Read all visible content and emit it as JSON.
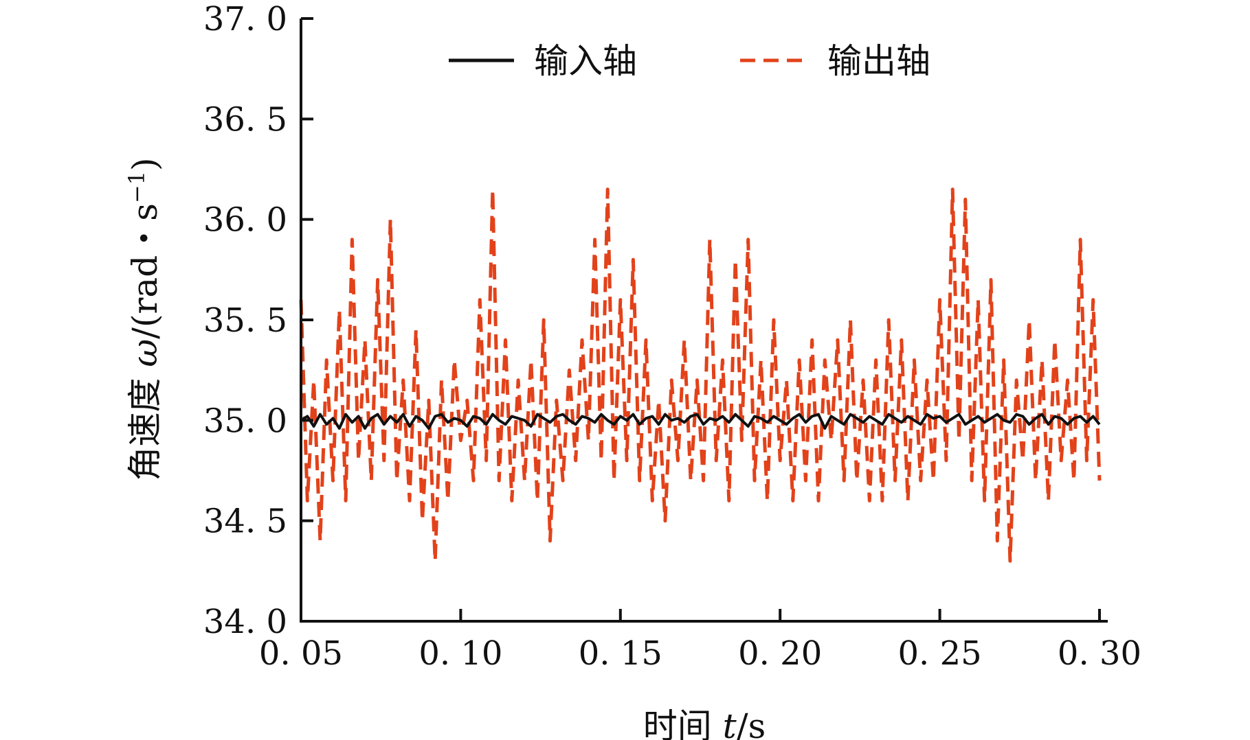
{
  "chart_data": {
    "type": "line",
    "xlabel_text": "时间 ",
    "xlabel_var": "t",
    "xlabel_unit": "/s",
    "ylabel_text": "角速度 ",
    "ylabel_var": "ω",
    "ylabel_unit": "/(rad・s",
    "ylabel_sup": "−1",
    "ylabel_close": ")",
    "xlim": [
      0.05,
      0.3
    ],
    "ylim": [
      34.0,
      37.0
    ],
    "xticks": [
      0.05,
      0.1,
      0.15,
      0.2,
      0.25,
      0.3
    ],
    "xtick_labels": [
      "0. 05",
      "0. 10",
      "0. 15",
      "0. 20",
      "0. 25",
      "0. 30"
    ],
    "yticks": [
      34.0,
      34.5,
      35.0,
      35.5,
      36.0,
      36.5,
      37.0
    ],
    "ytick_labels": [
      "34. 0",
      "34. 5",
      "35. 0",
      "35. 5",
      "36. 0",
      "36. 5",
      "37. 0"
    ],
    "legend_position": "top",
    "grid": false,
    "series": [
      {
        "name": "输入轴",
        "color": "#111111",
        "style": "solid",
        "x": [
          0.05,
          0.052,
          0.054,
          0.056,
          0.058,
          0.06,
          0.062,
          0.064,
          0.066,
          0.068,
          0.07,
          0.072,
          0.074,
          0.076,
          0.078,
          0.08,
          0.082,
          0.084,
          0.086,
          0.088,
          0.09,
          0.092,
          0.094,
          0.096,
          0.098,
          0.1,
          0.102,
          0.104,
          0.106,
          0.108,
          0.11,
          0.112,
          0.114,
          0.116,
          0.118,
          0.12,
          0.122,
          0.124,
          0.126,
          0.128,
          0.13,
          0.132,
          0.134,
          0.136,
          0.138,
          0.14,
          0.142,
          0.144,
          0.146,
          0.148,
          0.15,
          0.152,
          0.154,
          0.156,
          0.158,
          0.16,
          0.162,
          0.164,
          0.166,
          0.168,
          0.17,
          0.172,
          0.174,
          0.176,
          0.178,
          0.18,
          0.182,
          0.184,
          0.186,
          0.188,
          0.19,
          0.192,
          0.194,
          0.196,
          0.198,
          0.2,
          0.202,
          0.204,
          0.206,
          0.208,
          0.21,
          0.212,
          0.214,
          0.216,
          0.218,
          0.22,
          0.222,
          0.224,
          0.226,
          0.228,
          0.23,
          0.232,
          0.234,
          0.236,
          0.238,
          0.24,
          0.242,
          0.244,
          0.246,
          0.248,
          0.25,
          0.252,
          0.254,
          0.256,
          0.258,
          0.26,
          0.262,
          0.264,
          0.266,
          0.268,
          0.27,
          0.272,
          0.274,
          0.276,
          0.278,
          0.28,
          0.282,
          0.284,
          0.286,
          0.288,
          0.29,
          0.292,
          0.294,
          0.296,
          0.298,
          0.3
        ],
        "values": [
          35.0,
          35.02,
          34.97,
          35.03,
          34.98,
          35.01,
          34.96,
          35.03,
          34.99,
          35.02,
          34.96,
          35.01,
          35.03,
          34.98,
          35.02,
          34.99,
          35.03,
          34.97,
          35.02,
          35.0,
          34.96,
          35.02,
          35.03,
          34.99,
          35.01,
          35.0,
          34.97,
          35.02,
          35.01,
          34.98,
          35.03,
          35.0,
          34.98,
          35.02,
          35.01,
          35.0,
          34.97,
          35.03,
          35.01,
          34.99,
          35.02,
          35.03,
          35.0,
          34.98,
          35.02,
          35.01,
          34.99,
          35.03,
          35.0,
          34.98,
          35.02,
          35.0,
          35.03,
          34.98,
          35.01,
          35.02,
          34.98,
          35.03,
          35.0,
          35.01,
          34.99,
          35.02,
          35.03,
          34.98,
          35.01,
          35.0,
          35.02,
          34.99,
          35.03,
          35.0,
          34.97,
          35.02,
          35.01,
          34.99,
          35.02,
          35.0,
          34.98,
          35.01,
          35.03,
          34.99,
          35.02,
          35.03,
          34.96,
          35.02,
          35.0,
          34.98,
          35.03,
          35.01,
          34.99,
          35.02,
          35.0,
          34.98,
          35.03,
          35.01,
          34.99,
          35.02,
          35.0,
          34.98,
          35.03,
          35.01,
          35.02,
          34.99,
          35.01,
          35.03,
          34.98,
          35.0,
          35.02,
          34.99,
          35.01,
          35.03,
          35.0,
          34.99,
          35.03,
          35.02,
          34.98,
          35.01,
          35.03,
          34.98,
          35.02,
          35.01,
          34.98,
          35.01,
          35.02,
          34.99,
          35.02,
          34.98
        ]
      },
      {
        "name": "输出轴",
        "color": "#e2421a",
        "style": "dashed",
        "x": [
          0.05,
          0.052,
          0.054,
          0.056,
          0.058,
          0.06,
          0.062,
          0.064,
          0.066,
          0.068,
          0.07,
          0.072,
          0.074,
          0.076,
          0.078,
          0.08,
          0.082,
          0.084,
          0.086,
          0.088,
          0.09,
          0.092,
          0.094,
          0.096,
          0.098,
          0.1,
          0.102,
          0.104,
          0.106,
          0.108,
          0.11,
          0.112,
          0.114,
          0.116,
          0.118,
          0.12,
          0.122,
          0.124,
          0.126,
          0.128,
          0.13,
          0.132,
          0.134,
          0.136,
          0.138,
          0.14,
          0.142,
          0.144,
          0.146,
          0.148,
          0.15,
          0.152,
          0.154,
          0.156,
          0.158,
          0.16,
          0.162,
          0.164,
          0.166,
          0.168,
          0.17,
          0.172,
          0.174,
          0.176,
          0.178,
          0.18,
          0.182,
          0.184,
          0.186,
          0.188,
          0.19,
          0.192,
          0.194,
          0.196,
          0.198,
          0.2,
          0.202,
          0.204,
          0.206,
          0.208,
          0.21,
          0.212,
          0.214,
          0.216,
          0.218,
          0.22,
          0.222,
          0.224,
          0.226,
          0.228,
          0.23,
          0.232,
          0.234,
          0.236,
          0.238,
          0.24,
          0.242,
          0.244,
          0.246,
          0.248,
          0.25,
          0.252,
          0.254,
          0.256,
          0.258,
          0.26,
          0.262,
          0.264,
          0.266,
          0.268,
          0.27,
          0.272,
          0.274,
          0.276,
          0.278,
          0.28,
          0.282,
          0.284,
          0.286,
          0.288,
          0.29,
          0.292,
          0.294,
          0.296,
          0.298,
          0.3
        ],
        "values": [
          35.6,
          34.6,
          35.2,
          34.4,
          35.3,
          34.7,
          35.55,
          34.6,
          35.9,
          34.8,
          35.4,
          34.7,
          35.7,
          34.8,
          36.0,
          34.7,
          35.2,
          34.6,
          35.45,
          34.5,
          35.1,
          34.3,
          35.2,
          34.6,
          35.3,
          34.9,
          35.1,
          34.7,
          35.6,
          34.8,
          36.15,
          34.7,
          35.4,
          34.6,
          35.2,
          34.7,
          35.3,
          34.6,
          35.5,
          34.4,
          35.1,
          34.7,
          35.25,
          34.8,
          35.4,
          34.9,
          35.9,
          34.8,
          36.15,
          34.7,
          35.6,
          34.8,
          35.8,
          34.7,
          35.4,
          34.6,
          35.1,
          34.5,
          35.2,
          34.8,
          35.4,
          34.7,
          35.2,
          34.7,
          35.9,
          34.8,
          35.3,
          34.6,
          35.8,
          34.9,
          35.9,
          34.7,
          35.3,
          34.6,
          35.5,
          34.8,
          35.2,
          34.6,
          35.3,
          34.7,
          35.4,
          34.6,
          35.3,
          34.9,
          35.4,
          34.7,
          35.5,
          34.7,
          35.2,
          34.6,
          35.3,
          34.6,
          35.5,
          34.7,
          35.4,
          34.6,
          35.3,
          34.7,
          35.2,
          34.7,
          35.6,
          34.8,
          36.15,
          34.9,
          36.1,
          34.7,
          35.6,
          34.6,
          35.7,
          34.4,
          35.3,
          34.3,
          35.2,
          34.8,
          35.5,
          34.7,
          35.3,
          34.6,
          35.4,
          34.8,
          35.2,
          34.7,
          35.9,
          34.8,
          35.6,
          34.7
        ]
      }
    ]
  }
}
